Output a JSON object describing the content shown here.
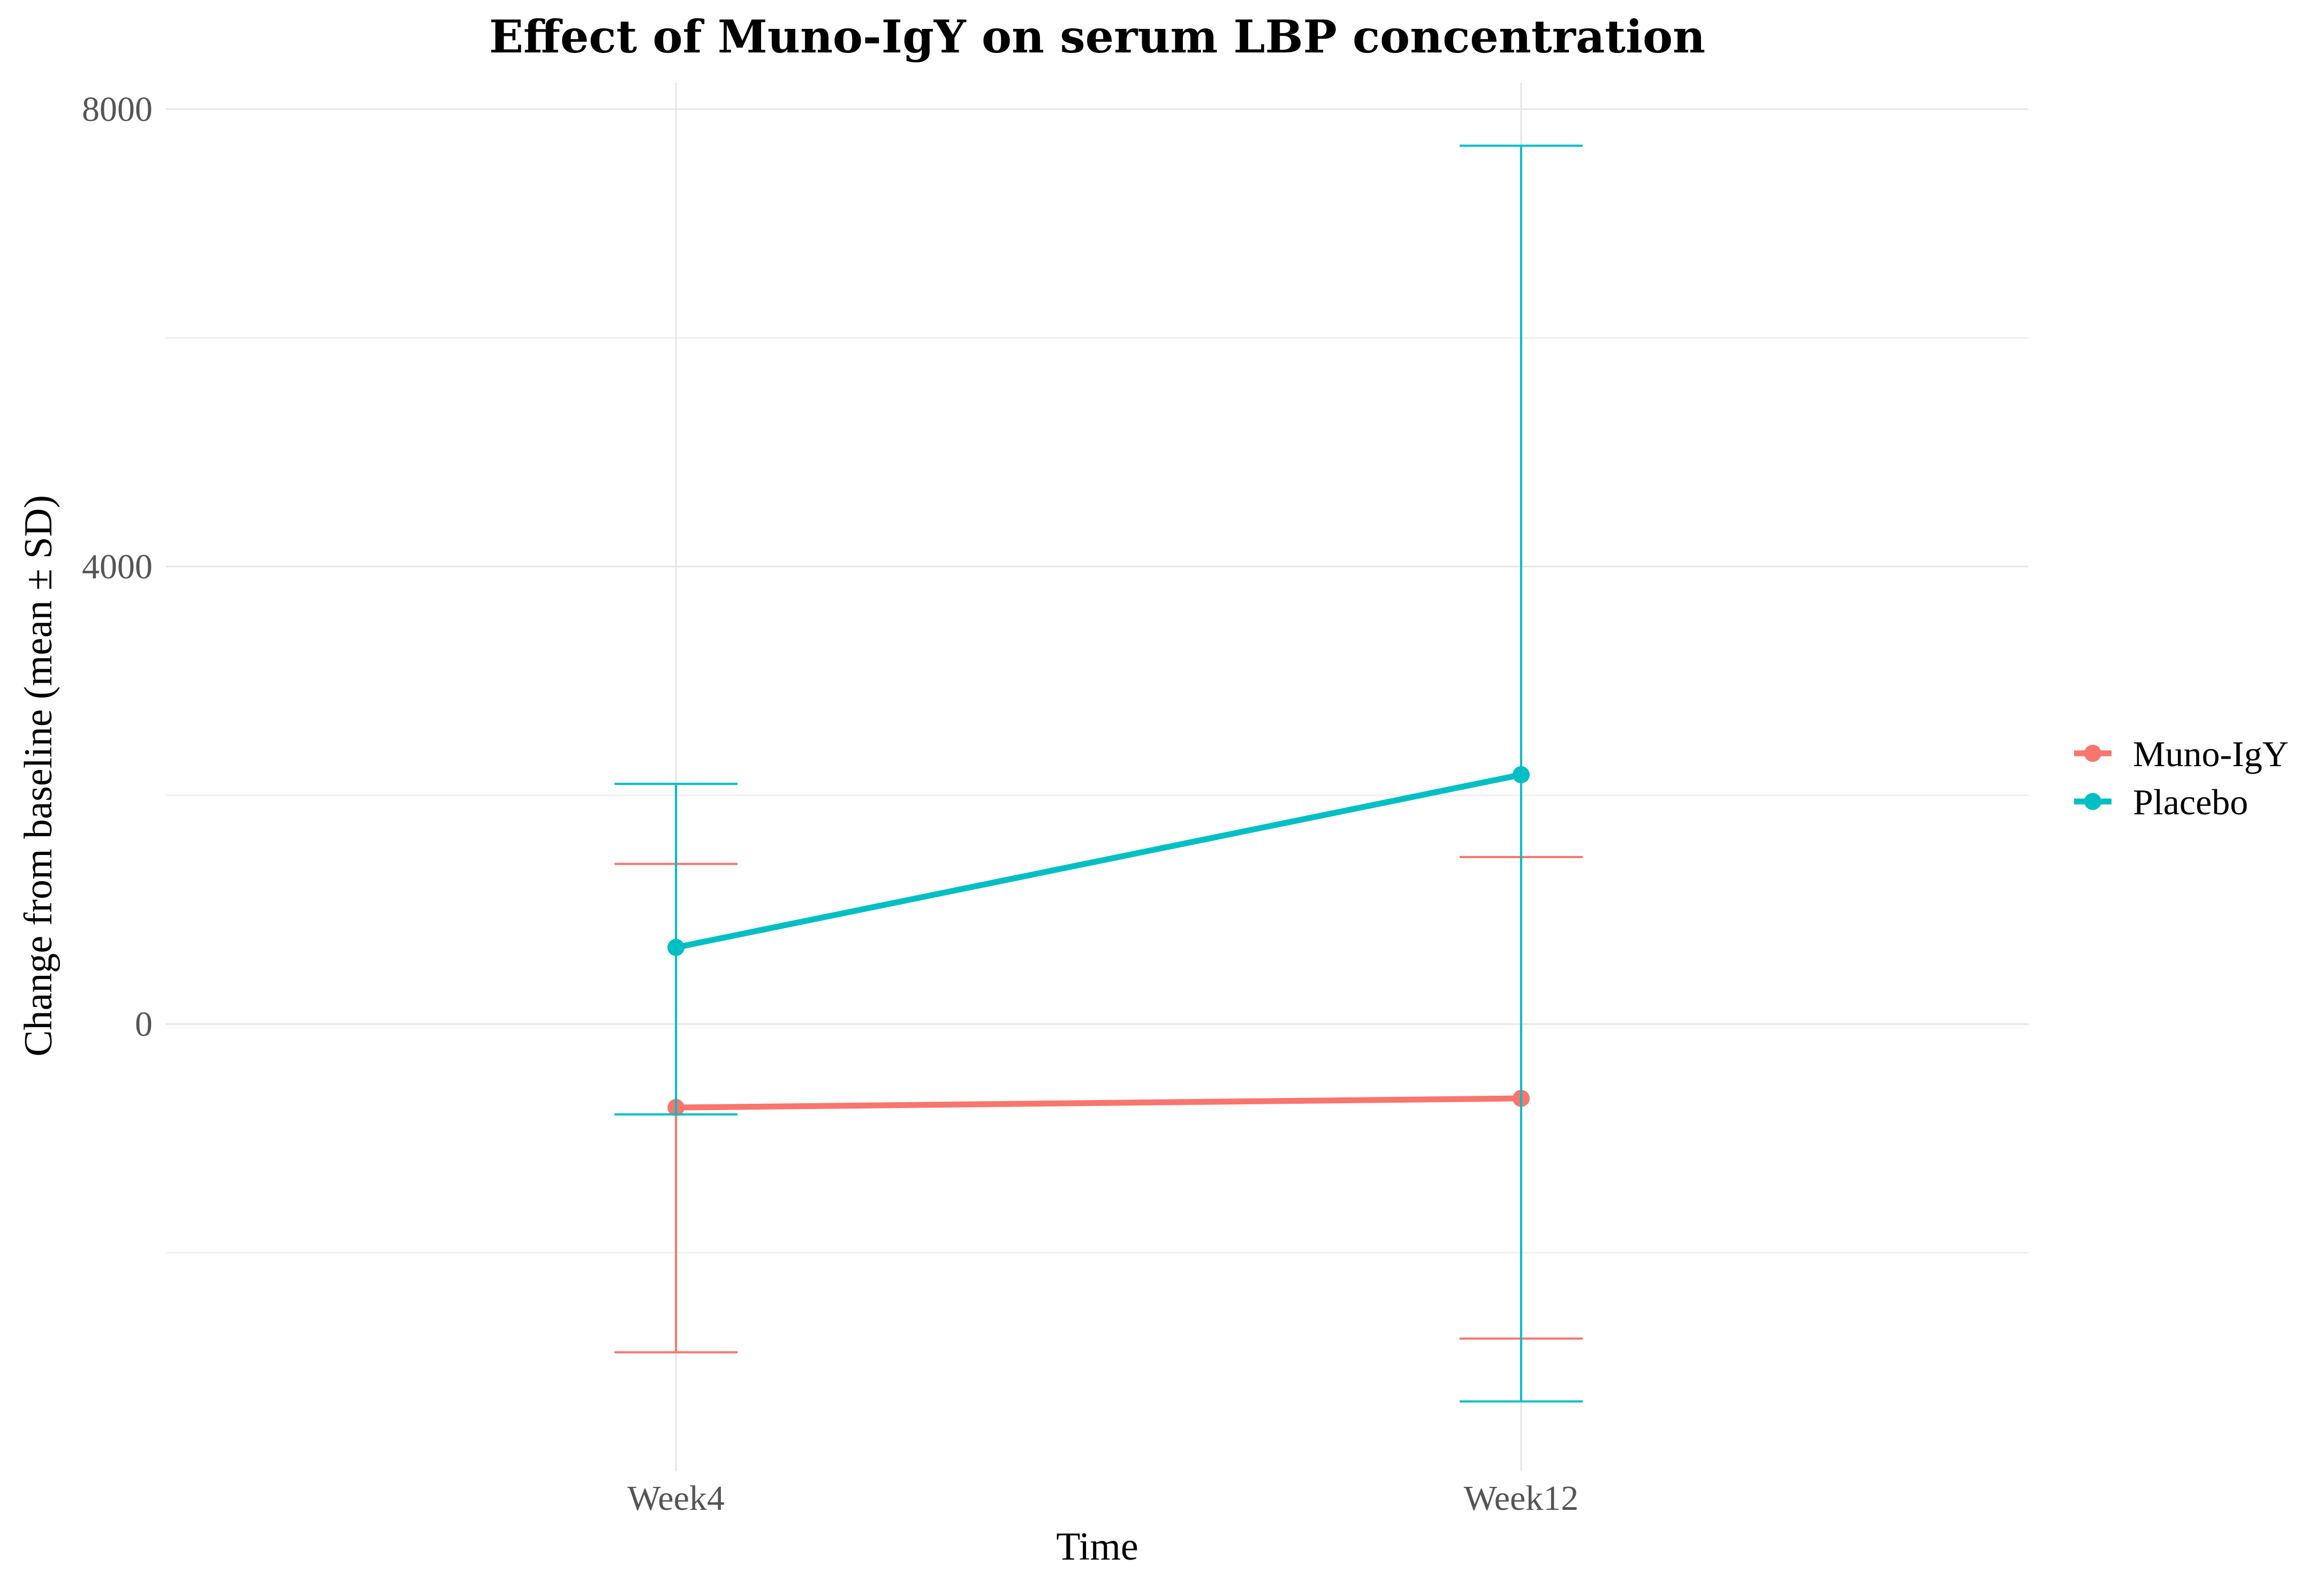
{
  "chart_data": {
    "type": "line",
    "title": "Effect of Muno-IgY on serum LBP concentration",
    "xlabel": "Time",
    "ylabel": "Change from baseline (mean ± SD)",
    "categories": [
      "Week4",
      "Week12"
    ],
    "y_ticks": [
      0,
      4000,
      8000
    ],
    "y_tick_labels": [
      "0",
      "4000",
      "8000"
    ],
    "ylim": [
      -3850,
      8220
    ],
    "grid": true,
    "legend_position": "right",
    "series": [
      {
        "name": "Muno-IgY",
        "color": "#F8766D",
        "values": [
          -730,
          -650
        ],
        "error_lower": [
          -2870,
          -2750
        ],
        "error_upper": [
          1400,
          1460
        ]
      },
      {
        "name": "Placebo",
        "color": "#00BFC4",
        "values": [
          670,
          2180
        ],
        "error_lower": [
          -790,
          -3300
        ],
        "error_upper": [
          2100,
          7680
        ]
      }
    ]
  }
}
